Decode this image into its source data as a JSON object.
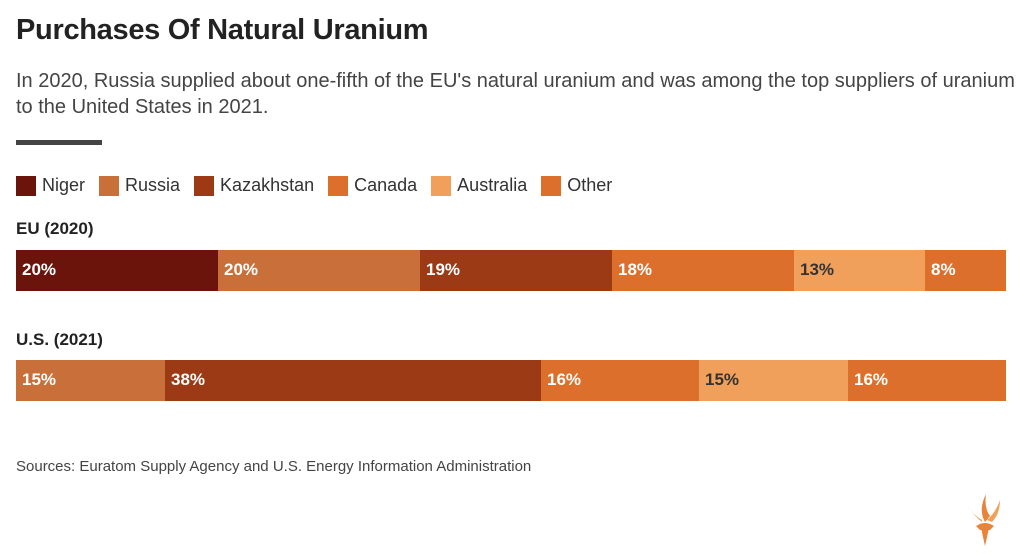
{
  "title": "Purchases Of Natural Uranium",
  "subtitle": "In 2020, Russia supplied about one-fifth of the EU's natural uranium and was among the top suppliers of uranium to the United States in 2021.",
  "source": "Sources: Euratom Supply Agency and U.S. Energy Information Administration",
  "colors": {
    "Niger": "#6b140c",
    "Russia": "#c96f3a",
    "Kazakhstan": "#9c3a16",
    "Canada": "#dd6f2c",
    "Australia": "#f1a05c",
    "Other": "#dd6f2c"
  },
  "chart_data": {
    "type": "bar",
    "orientation": "horizontal-stacked-100",
    "legend": [
      "Niger",
      "Russia",
      "Kazakhstan",
      "Canada",
      "Australia",
      "Other"
    ],
    "legend_placement": "top-left",
    "rows": [
      {
        "label": "EU (2020)",
        "segments": [
          {
            "series": "Niger",
            "value": 20,
            "label": "20%",
            "text_color": "#ffffff"
          },
          {
            "series": "Russia",
            "value": 20,
            "label": "20%",
            "text_color": "#ffffff"
          },
          {
            "series": "Kazakhstan",
            "value": 19,
            "label": "19%",
            "text_color": "#ffffff"
          },
          {
            "series": "Canada",
            "value": 18,
            "label": "18%",
            "text_color": "#ffffff"
          },
          {
            "series": "Australia",
            "value": 13,
            "label": "13%",
            "text_color": "#333333"
          },
          {
            "series": "Other",
            "value": 8,
            "label": "8%",
            "text_color": "#ffffff"
          }
        ]
      },
      {
        "label": "U.S. (2021)",
        "segments": [
          {
            "series": "Russia",
            "value": 15,
            "label": "15%",
            "text_color": "#ffffff"
          },
          {
            "series": "Kazakhstan",
            "value": 38,
            "label": "38%",
            "text_color": "#ffffff"
          },
          {
            "series": "Canada",
            "value": 16,
            "label": "16%",
            "text_color": "#ffffff"
          },
          {
            "series": "Australia",
            "value": 15,
            "label": "15%",
            "text_color": "#333333"
          },
          {
            "series": "Other",
            "value": 16,
            "label": "16%",
            "text_color": "#ffffff"
          }
        ]
      }
    ]
  }
}
